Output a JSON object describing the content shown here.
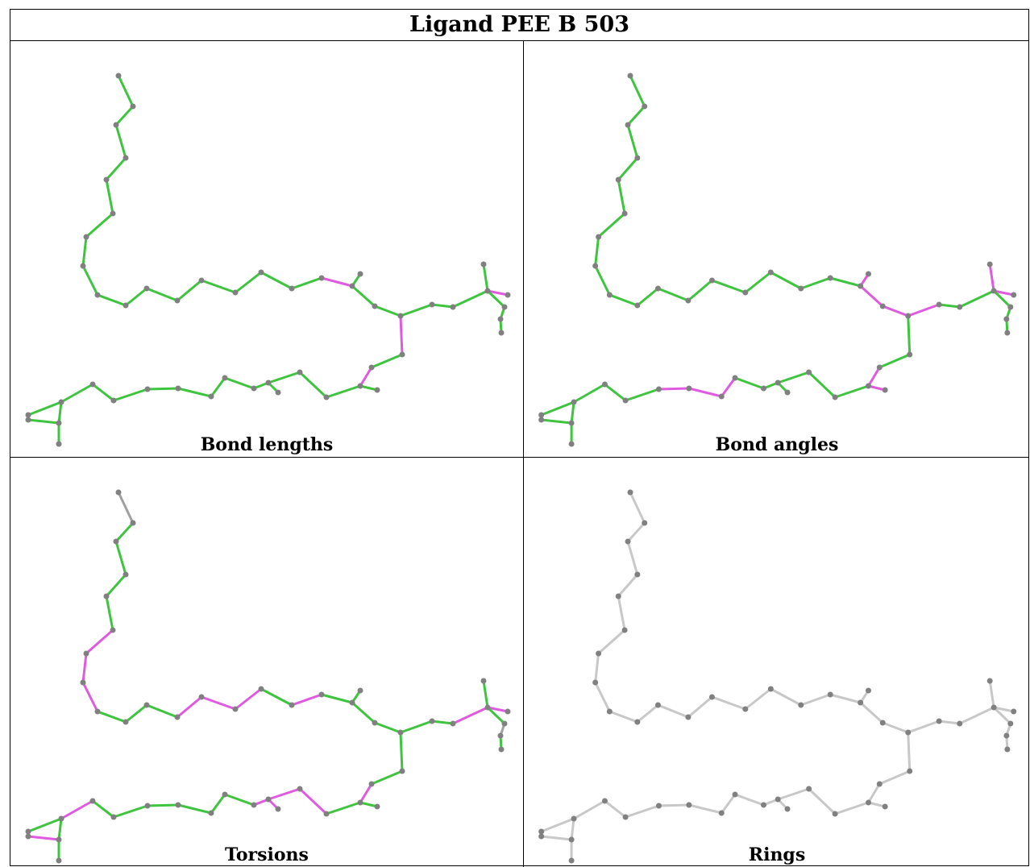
{
  "title": "Ligand PEE B 503",
  "panels": [
    {
      "caption": "Bond lengths",
      "mode": "lengths"
    },
    {
      "caption": "Bond angles",
      "mode": "angles"
    },
    {
      "caption": "Torsions",
      "mode": "torsions"
    },
    {
      "caption": "Rings",
      "mode": "rings"
    }
  ],
  "colors": {
    "good": "#3ec43e",
    "outlier": "#e05ae0",
    "neutral": "#c8c8c8",
    "atom": "#808080"
  }
}
